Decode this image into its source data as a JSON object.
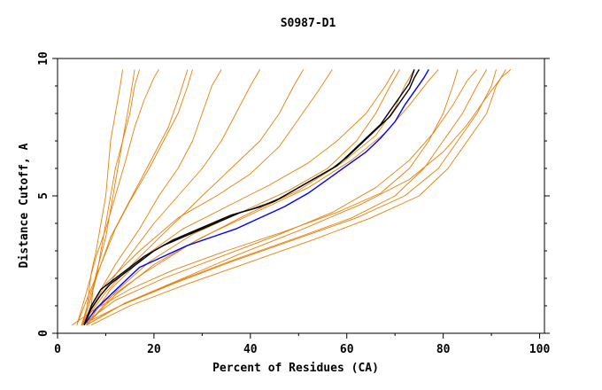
{
  "chart_data": {
    "type": "line",
    "title": "S0987-D1",
    "xlabel": "Percent of Residues (CA)",
    "ylabel": "Distance Cutoff, A",
    "xlim": [
      0,
      101
    ],
    "ylim": [
      0,
      10
    ],
    "x_ticks": [
      0,
      20,
      40,
      60,
      80,
      100
    ],
    "y_ticks": [
      0,
      5,
      10
    ],
    "x_tick_labels": [
      "0",
      "20",
      "40",
      "60",
      "80",
      "100"
    ],
    "y_tick_labels": [
      "0",
      "5",
      "10"
    ],
    "grid": false,
    "legend": "none",
    "colors": {
      "models": "#e8800a",
      "highlight_blue": "#0000ff",
      "highlight_black": "#000000",
      "axes": "#000000"
    },
    "series": [
      {
        "color": "#e8800a",
        "points": [
          [
            5,
            0.3
          ],
          [
            6,
            0.8
          ],
          [
            6.5,
            1.5
          ],
          [
            7,
            2.2
          ],
          [
            8,
            3
          ],
          [
            9,
            4
          ],
          [
            10,
            5
          ],
          [
            10.5,
            6
          ],
          [
            11,
            7
          ],
          [
            12,
            8
          ],
          [
            13,
            9
          ],
          [
            13.5,
            9.6
          ]
        ]
      },
      {
        "color": "#e8800a",
        "points": [
          [
            6,
            0.3
          ],
          [
            7,
            1
          ],
          [
            7.5,
            1.8
          ],
          [
            8.5,
            2.5
          ],
          [
            10,
            3.5
          ],
          [
            11,
            4.5
          ],
          [
            12,
            5.5
          ],
          [
            13,
            6.5
          ],
          [
            14,
            7.5
          ],
          [
            15,
            8.5
          ],
          [
            16,
            9.6
          ]
        ]
      },
      {
        "color": "#e8800a",
        "points": [
          [
            5,
            0.3
          ],
          [
            6.5,
            1
          ],
          [
            8,
            2
          ],
          [
            9,
            3
          ],
          [
            10,
            4
          ],
          [
            11,
            5
          ],
          [
            12,
            6
          ],
          [
            13.5,
            7
          ],
          [
            15,
            8
          ],
          [
            16,
            9
          ],
          [
            17,
            9.6
          ]
        ]
      },
      {
        "color": "#e8800a",
        "points": [
          [
            4,
            0.3
          ],
          [
            6,
            1.5
          ],
          [
            8,
            2.8
          ],
          [
            10,
            3.8
          ],
          [
            12,
            5
          ],
          [
            14,
            6.2
          ],
          [
            16,
            7.5
          ],
          [
            18,
            8.5
          ],
          [
            20,
            9.3
          ],
          [
            21,
            9.6
          ]
        ]
      },
      {
        "color": "#e8800a",
        "points": [
          [
            5,
            0.3
          ],
          [
            7,
            1.5
          ],
          [
            9,
            2.5
          ],
          [
            11,
            3.5
          ],
          [
            14,
            4.5
          ],
          [
            17,
            5.5
          ],
          [
            20,
            6.5
          ],
          [
            23,
            7.5
          ],
          [
            25,
            8.5
          ],
          [
            27,
            9.6
          ]
        ]
      },
      {
        "color": "#e8800a",
        "points": [
          [
            4,
            0.3
          ],
          [
            6,
            1.2
          ],
          [
            9,
            2.5
          ],
          [
            12,
            3.8
          ],
          [
            15,
            4.8
          ],
          [
            19,
            6
          ],
          [
            22,
            7
          ],
          [
            25,
            8
          ],
          [
            27,
            9
          ],
          [
            28,
            9.6
          ]
        ]
      },
      {
        "color": "#e8800a",
        "points": [
          [
            5,
            0.3
          ],
          [
            8,
            1.3
          ],
          [
            12,
            2.5
          ],
          [
            17,
            3.8
          ],
          [
            21,
            5
          ],
          [
            25,
            6
          ],
          [
            28,
            7
          ],
          [
            30,
            8
          ],
          [
            32,
            9
          ],
          [
            34,
            9.6
          ]
        ]
      },
      {
        "color": "#e8800a",
        "points": [
          [
            5,
            0.3
          ],
          [
            9,
            1.4
          ],
          [
            14,
            2.6
          ],
          [
            20,
            4
          ],
          [
            25,
            5
          ],
          [
            30,
            6
          ],
          [
            34,
            7
          ],
          [
            37,
            8
          ],
          [
            40,
            9
          ],
          [
            42,
            9.6
          ]
        ]
      },
      {
        "color": "#e8800a",
        "points": [
          [
            5,
            0.3
          ],
          [
            10,
            1.5
          ],
          [
            16,
            2.6
          ],
          [
            23,
            3.8
          ],
          [
            30,
            5
          ],
          [
            36,
            6
          ],
          [
            42,
            7
          ],
          [
            46,
            8
          ],
          [
            49,
            9
          ],
          [
            51,
            9.6
          ]
        ]
      },
      {
        "color": "#e8800a",
        "points": [
          [
            5,
            0.3
          ],
          [
            10,
            1.8
          ],
          [
            17,
            3
          ],
          [
            25,
            4.2
          ],
          [
            33,
            5
          ],
          [
            40,
            5.8
          ],
          [
            46,
            6.8
          ],
          [
            50,
            7.8
          ],
          [
            54,
            8.8
          ],
          [
            57,
            9.6
          ]
        ]
      },
      {
        "color": "#e8800a",
        "points": [
          [
            6,
            0.3
          ],
          [
            11,
            1.6
          ],
          [
            18,
            2.8
          ],
          [
            26,
            3.8
          ],
          [
            35,
            4.6
          ],
          [
            44,
            5.4
          ],
          [
            52,
            6.2
          ],
          [
            58,
            7
          ],
          [
            64,
            8
          ],
          [
            68,
            9
          ],
          [
            70,
            9.6
          ]
        ]
      },
      {
        "color": "#e8800a",
        "points": [
          [
            6,
            0.3
          ],
          [
            12,
            1.5
          ],
          [
            19,
            2.6
          ],
          [
            28,
            3.6
          ],
          [
            38,
            4.4
          ],
          [
            48,
            5.2
          ],
          [
            56,
            6
          ],
          [
            62,
            7
          ],
          [
            66,
            8
          ],
          [
            69,
            9
          ],
          [
            71,
            9.6
          ]
        ]
      },
      {
        "color": "#e8800a",
        "points": [
          [
            5,
            0.3
          ],
          [
            10,
            1.2
          ],
          [
            18,
            2.2
          ],
          [
            28,
            3.3
          ],
          [
            39,
            4.3
          ],
          [
            50,
            5.2
          ],
          [
            59,
            6.2
          ],
          [
            66,
            7.2
          ],
          [
            70,
            8.2
          ],
          [
            72,
            9
          ],
          [
            74,
            9.6
          ]
        ]
      },
      {
        "color": "#e8800a",
        "points": [
          [
            6,
            0.3
          ],
          [
            12,
            1.4
          ],
          [
            20,
            2.5
          ],
          [
            30,
            3.5
          ],
          [
            41,
            4.4
          ],
          [
            52,
            5.3
          ],
          [
            61,
            6.3
          ],
          [
            68,
            7.3
          ],
          [
            73,
            8.3
          ],
          [
            77,
            9.2
          ],
          [
            79,
            9.6
          ]
        ]
      },
      {
        "color": "#e8800a",
        "points": [
          [
            5,
            0.3
          ],
          [
            12,
            1.2
          ],
          [
            22,
            2
          ],
          [
            34,
            2.8
          ],
          [
            46,
            3.6
          ],
          [
            57,
            4.4
          ],
          [
            66,
            5.3
          ],
          [
            73,
            6.3
          ],
          [
            78,
            7.3
          ],
          [
            82,
            8.3
          ],
          [
            85,
            9.2
          ],
          [
            87,
            9.6
          ]
        ]
      },
      {
        "color": "#e8800a",
        "points": [
          [
            6,
            0.3
          ],
          [
            14,
            1.1
          ],
          [
            25,
            1.9
          ],
          [
            37,
            2.7
          ],
          [
            50,
            3.5
          ],
          [
            61,
            4.2
          ],
          [
            70,
            5
          ],
          [
            76,
            6
          ],
          [
            80,
            7
          ],
          [
            84,
            8
          ],
          [
            87,
            9
          ],
          [
            89,
            9.6
          ]
        ]
      },
      {
        "color": "#e8800a",
        "points": [
          [
            5,
            0.3
          ],
          [
            13,
            1
          ],
          [
            24,
            1.8
          ],
          [
            36,
            2.6
          ],
          [
            49,
            3.4
          ],
          [
            62,
            4.2
          ],
          [
            72,
            5
          ],
          [
            79,
            6
          ],
          [
            83,
            7
          ],
          [
            87,
            8
          ],
          [
            90,
            9
          ],
          [
            91,
            9.6
          ]
        ]
      },
      {
        "color": "#e8800a",
        "points": [
          [
            7,
            0.3
          ],
          [
            15,
            1
          ],
          [
            27,
            1.8
          ],
          [
            40,
            2.6
          ],
          [
            53,
            3.4
          ],
          [
            65,
            4.2
          ],
          [
            75,
            5
          ],
          [
            81,
            6
          ],
          [
            85,
            7
          ],
          [
            89,
            8
          ],
          [
            91,
            9
          ],
          [
            93,
            9.6
          ]
        ]
      },
      {
        "color": "#e8800a",
        "points": [
          [
            6,
            0.3
          ],
          [
            14,
            1.1
          ],
          [
            26,
            2
          ],
          [
            38,
            2.9
          ],
          [
            51,
            3.8
          ],
          [
            63,
            4.7
          ],
          [
            73,
            5.6
          ],
          [
            80,
            6.6
          ],
          [
            85,
            7.6
          ],
          [
            89,
            8.6
          ],
          [
            92,
            9.3
          ],
          [
            94,
            9.6
          ]
        ]
      },
      {
        "color": "#e8800a",
        "points": [
          [
            3,
            0.3
          ],
          [
            8,
            0.9
          ],
          [
            15,
            1.6
          ],
          [
            24,
            2.3
          ],
          [
            35,
            3
          ],
          [
            47,
            3.7
          ],
          [
            58,
            4.4
          ],
          [
            67,
            5.1
          ],
          [
            73,
            6
          ],
          [
            77,
            7
          ],
          [
            80,
            8
          ],
          [
            82,
            9
          ],
          [
            83,
            9.6
          ]
        ]
      },
      {
        "color": "#0000ff",
        "points": [
          [
            5.5,
            0.3
          ],
          [
            8,
            0.9
          ],
          [
            11,
            1.4
          ],
          [
            14,
            1.9
          ],
          [
            17,
            2.4
          ],
          [
            22,
            2.8
          ],
          [
            27,
            3.2
          ],
          [
            32,
            3.5
          ],
          [
            37,
            3.8
          ],
          [
            42,
            4.2
          ],
          [
            47,
            4.6
          ],
          [
            52,
            5.1
          ],
          [
            56,
            5.6
          ],
          [
            60,
            6.1
          ],
          [
            64,
            6.6
          ],
          [
            67,
            7.1
          ],
          [
            70,
            7.7
          ],
          [
            72,
            8.3
          ],
          [
            74,
            8.8
          ],
          [
            76,
            9.3
          ],
          [
            77,
            9.6
          ]
        ]
      },
      {
        "color": "#000000",
        "points": [
          [
            5.5,
            0.3
          ],
          [
            7,
            0.9
          ],
          [
            9,
            1.4
          ],
          [
            11,
            1.8
          ],
          [
            14,
            2.2
          ],
          [
            17,
            2.6
          ],
          [
            20,
            3
          ],
          [
            24,
            3.4
          ],
          [
            28,
            3.7
          ],
          [
            32,
            4
          ],
          [
            36,
            4.3
          ],
          [
            40,
            4.5
          ],
          [
            45,
            4.8
          ],
          [
            49,
            5.2
          ],
          [
            53,
            5.6
          ],
          [
            57,
            6
          ],
          [
            60,
            6.4
          ],
          [
            63,
            6.9
          ],
          [
            66,
            7.4
          ],
          [
            69,
            7.9
          ],
          [
            71,
            8.4
          ],
          [
            73,
            8.9
          ],
          [
            74,
            9.3
          ],
          [
            75,
            9.6
          ]
        ]
      },
      {
        "color": "#000000",
        "points": [
          [
            5.5,
            0.3
          ],
          [
            7,
            1
          ],
          [
            9,
            1.6
          ],
          [
            12,
            2
          ],
          [
            15,
            2.4
          ],
          [
            18,
            2.8
          ],
          [
            22,
            3.2
          ],
          [
            26,
            3.5
          ],
          [
            30,
            3.8
          ],
          [
            34,
            4.1
          ],
          [
            38,
            4.4
          ],
          [
            42,
            4.6
          ],
          [
            46,
            4.9
          ],
          [
            50,
            5.3
          ],
          [
            54,
            5.7
          ],
          [
            58,
            6.1
          ],
          [
            61,
            6.6
          ],
          [
            64,
            7.1
          ],
          [
            67,
            7.6
          ],
          [
            69,
            8.1
          ],
          [
            71,
            8.6
          ],
          [
            73,
            9.1
          ],
          [
            74,
            9.6
          ]
        ]
      }
    ]
  }
}
